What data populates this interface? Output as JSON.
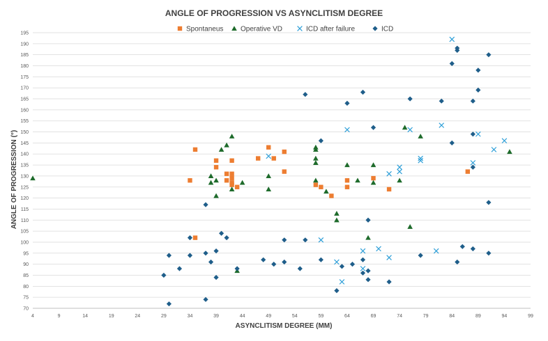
{
  "chart_data": {
    "type": "scatter",
    "title": "ANGLE OF PROGRESSION VS ASYNCLITISM DEGREE",
    "xlabel": "ASYNCLITISM DEGREE (MM)",
    "ylabel": "ANGLE OF PROGRESSION (°)",
    "xlim": [
      4,
      99
    ],
    "ylim": [
      70,
      195
    ],
    "xticks": [
      4,
      9,
      14,
      19,
      24,
      29,
      34,
      39,
      44,
      49,
      54,
      59,
      64,
      69,
      74,
      79,
      84,
      89,
      94,
      99
    ],
    "yticks": [
      70,
      75,
      80,
      85,
      90,
      95,
      100,
      105,
      110,
      115,
      120,
      125,
      130,
      135,
      140,
      145,
      150,
      155,
      160,
      165,
      170,
      175,
      180,
      185,
      190,
      195
    ],
    "grid": true,
    "legend_position": "top",
    "series": [
      {
        "name": "Spontaneus",
        "color": "#ED7D31",
        "marker": "square",
        "points": [
          [
            34,
            128
          ],
          [
            35,
            142
          ],
          [
            35,
            102
          ],
          [
            39,
            137
          ],
          [
            39,
            134
          ],
          [
            41,
            131
          ],
          [
            41,
            128
          ],
          [
            42,
            131
          ],
          [
            42,
            129
          ],
          [
            42,
            127
          ],
          [
            42,
            126
          ],
          [
            42,
            137
          ],
          [
            43,
            125
          ],
          [
            47,
            138
          ],
          [
            49,
            143
          ],
          [
            50,
            138
          ],
          [
            52,
            141
          ],
          [
            52,
            132
          ],
          [
            58,
            126
          ],
          [
            59,
            125
          ],
          [
            61,
            121
          ],
          [
            64,
            128
          ],
          [
            64,
            125
          ],
          [
            69,
            129
          ],
          [
            72,
            124
          ],
          [
            87,
            132
          ]
        ]
      },
      {
        "name": "Operative VD",
        "color": "#1E6B2B",
        "marker": "triangle",
        "points": [
          [
            4,
            129
          ],
          [
            38,
            130
          ],
          [
            38,
            127
          ],
          [
            39,
            128
          ],
          [
            39,
            121
          ],
          [
            40,
            142
          ],
          [
            41,
            144
          ],
          [
            42,
            148
          ],
          [
            42,
            124
          ],
          [
            43,
            87
          ],
          [
            44,
            127
          ],
          [
            49,
            130
          ],
          [
            49,
            124
          ],
          [
            58,
            143
          ],
          [
            58,
            142
          ],
          [
            58,
            138
          ],
          [
            58,
            136
          ],
          [
            58,
            128
          ],
          [
            60,
            123
          ],
          [
            62,
            113
          ],
          [
            62,
            110
          ],
          [
            64,
            135
          ],
          [
            66,
            128
          ],
          [
            68,
            102
          ],
          [
            69,
            135
          ],
          [
            69,
            127
          ],
          [
            74,
            128
          ],
          [
            75,
            152
          ],
          [
            76,
            107
          ],
          [
            78,
            148
          ],
          [
            95,
            141
          ]
        ]
      },
      {
        "name": "ICD after failure",
        "color": "#2E9FD8",
        "marker": "x",
        "points": [
          [
            49,
            139
          ],
          [
            59,
            101
          ],
          [
            62,
            91
          ],
          [
            63,
            82
          ],
          [
            64,
            151
          ],
          [
            67,
            96
          ],
          [
            67,
            88
          ],
          [
            70,
            97
          ],
          [
            72,
            131
          ],
          [
            72,
            93
          ],
          [
            74,
            134
          ],
          [
            74,
            132
          ],
          [
            76,
            151
          ],
          [
            78,
            138
          ],
          [
            78,
            137
          ],
          [
            81,
            96
          ],
          [
            82,
            153
          ],
          [
            84,
            192
          ],
          [
            88,
            136
          ],
          [
            89,
            149
          ],
          [
            92,
            142
          ],
          [
            94,
            146
          ]
        ]
      },
      {
        "name": "ICD",
        "color": "#1F5E8A",
        "marker": "diamond",
        "points": [
          [
            29,
            85
          ],
          [
            30,
            94
          ],
          [
            30,
            72
          ],
          [
            32,
            88
          ],
          [
            34,
            102
          ],
          [
            34,
            94
          ],
          [
            37,
            117
          ],
          [
            37,
            95
          ],
          [
            37,
            74
          ],
          [
            38,
            91
          ],
          [
            39,
            96
          ],
          [
            39,
            84
          ],
          [
            40,
            104
          ],
          [
            41,
            102
          ],
          [
            43,
            88
          ],
          [
            48,
            92
          ],
          [
            50,
            90
          ],
          [
            52,
            101
          ],
          [
            52,
            91
          ],
          [
            55,
            88
          ],
          [
            56,
            167
          ],
          [
            56,
            101
          ],
          [
            59,
            146
          ],
          [
            59,
            92
          ],
          [
            62,
            78
          ],
          [
            63,
            89
          ],
          [
            64,
            163
          ],
          [
            65,
            90
          ],
          [
            67,
            168
          ],
          [
            67,
            92
          ],
          [
            67,
            86
          ],
          [
            68,
            110
          ],
          [
            68,
            87
          ],
          [
            68,
            83
          ],
          [
            69,
            152
          ],
          [
            72,
            82
          ],
          [
            76,
            165
          ],
          [
            78,
            94
          ],
          [
            82,
            164
          ],
          [
            84,
            181
          ],
          [
            84,
            145
          ],
          [
            85,
            188
          ],
          [
            85,
            187
          ],
          [
            85,
            91
          ],
          [
            86,
            98
          ],
          [
            88,
            164
          ],
          [
            88,
            149
          ],
          [
            88,
            134
          ],
          [
            88,
            97
          ],
          [
            89,
            178
          ],
          [
            89,
            169
          ],
          [
            91,
            185
          ],
          [
            91,
            118
          ],
          [
            91,
            95
          ]
        ]
      }
    ]
  }
}
